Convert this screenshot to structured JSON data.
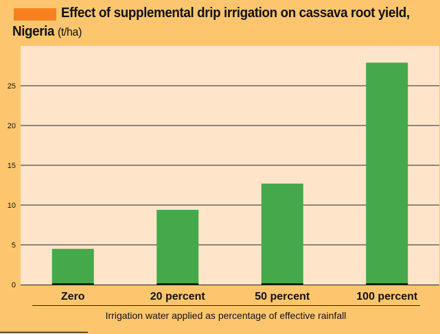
{
  "title": {
    "line1": "Effect of supplemental drip irrigation on cassava root yield,",
    "line2_bold": "Nigeria",
    "line2_unit": "(t/ha)"
  },
  "colors": {
    "background": "#fdc66e",
    "plot_background": "#fee5c9",
    "bar": "#45a84a",
    "accent": "#f7811f"
  },
  "chart_data": {
    "type": "bar",
    "categories": [
      "Zero",
      "20 percent",
      "50 percent",
      "100 percent"
    ],
    "values": [
      4.5,
      9.4,
      12.7,
      27.9
    ],
    "title": "Effect of supplemental drip irrigation on cassava root yield, Nigeria (t/ha)",
    "xlabel": "Irrigation water applied as percentage of effective rainfall",
    "ylabel": "",
    "ylim": [
      0,
      30
    ],
    "yticks": [
      0,
      5,
      10,
      15,
      20,
      25
    ],
    "grid": true,
    "legend": "none"
  }
}
